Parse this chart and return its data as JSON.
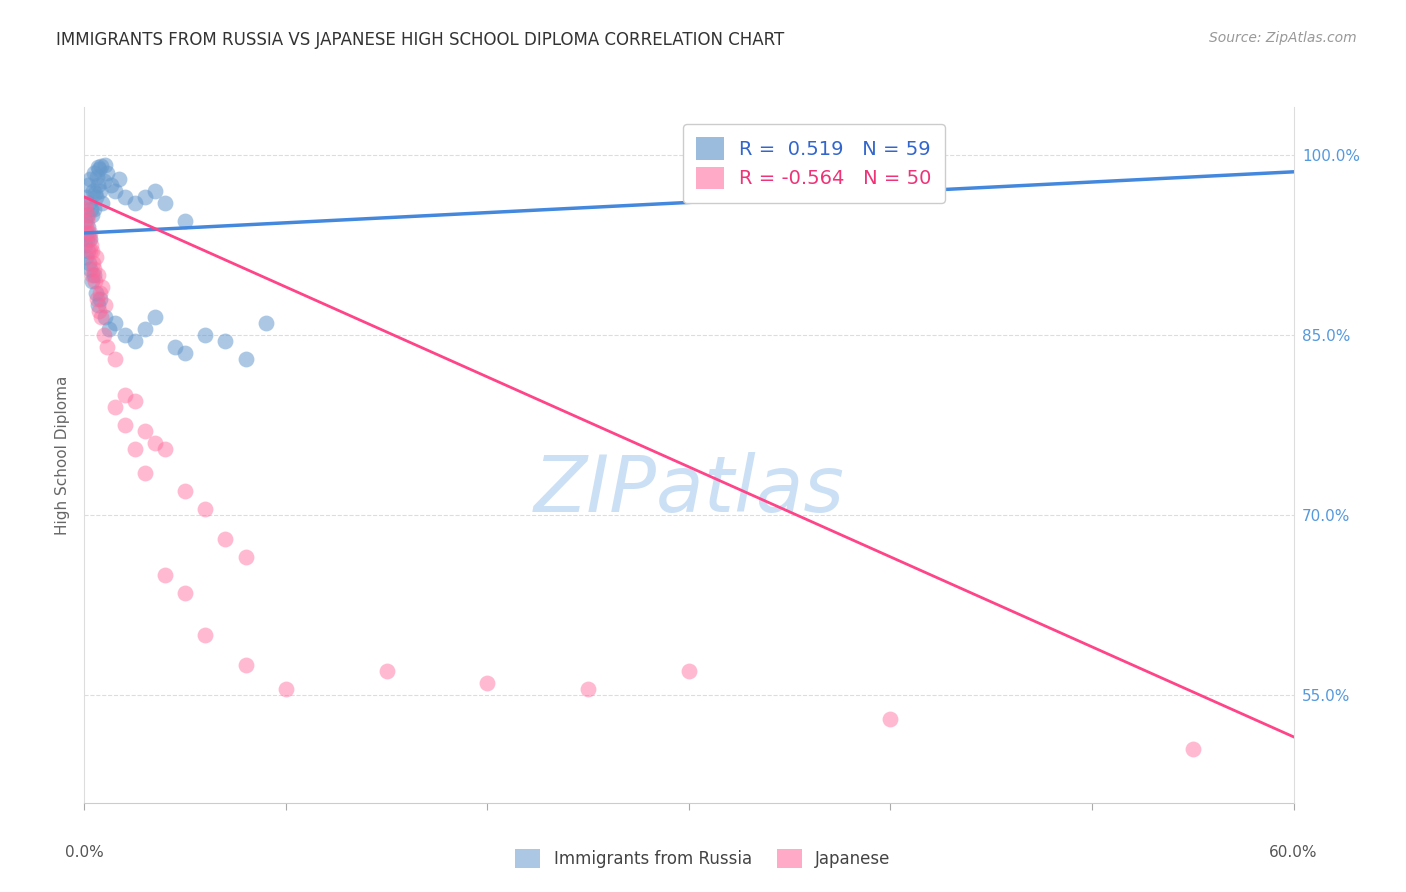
{
  "title": "IMMIGRANTS FROM RUSSIA VS JAPANESE HIGH SCHOOL DIPLOMA CORRELATION CHART",
  "source": "Source: ZipAtlas.com",
  "ylabel": "High School Diploma",
  "y_ticks": [
    55.0,
    70.0,
    85.0,
    100.0
  ],
  "y_tick_labels": [
    "55.0%",
    "70.0%",
    "85.0%",
    "100.0%"
  ],
  "xlim": [
    0.0,
    60.0
  ],
  "ylim": [
    46.0,
    104.0
  ],
  "legend_blue_r": "0.519",
  "legend_blue_n": "59",
  "legend_pink_r": "-0.564",
  "legend_pink_n": "50",
  "legend_label_blue": "Immigrants from Russia",
  "legend_label_pink": "Japanese",
  "blue_color": "#6699CC",
  "pink_color": "#FF6699",
  "blue_scatter": [
    [
      0.2,
      97.5
    ],
    [
      0.3,
      98.0
    ],
    [
      0.5,
      98.5
    ],
    [
      0.7,
      99.0
    ],
    [
      1.0,
      99.2
    ],
    [
      0.1,
      96.5
    ],
    [
      0.15,
      95.0
    ],
    [
      0.25,
      96.0
    ],
    [
      0.35,
      95.5
    ],
    [
      0.45,
      97.0
    ],
    [
      0.55,
      96.8
    ],
    [
      0.65,
      98.2
    ],
    [
      0.75,
      98.8
    ],
    [
      0.85,
      99.1
    ],
    [
      0.95,
      97.8
    ],
    [
      0.05,
      94.5
    ],
    [
      0.1,
      93.5
    ],
    [
      0.2,
      94.0
    ],
    [
      0.3,
      93.0
    ],
    [
      0.4,
      95.0
    ],
    [
      0.5,
      95.5
    ],
    [
      0.6,
      96.5
    ],
    [
      0.7,
      97.5
    ],
    [
      0.8,
      97.0
    ],
    [
      0.9,
      96.0
    ],
    [
      1.1,
      98.5
    ],
    [
      1.3,
      97.5
    ],
    [
      1.5,
      97.0
    ],
    [
      1.7,
      98.0
    ],
    [
      2.0,
      96.5
    ],
    [
      2.5,
      96.0
    ],
    [
      3.0,
      96.5
    ],
    [
      3.5,
      97.0
    ],
    [
      4.0,
      96.0
    ],
    [
      5.0,
      94.5
    ],
    [
      0.05,
      92.5
    ],
    [
      0.1,
      91.5
    ],
    [
      0.15,
      93.0
    ],
    [
      0.2,
      92.0
    ],
    [
      0.25,
      91.0
    ],
    [
      0.3,
      90.5
    ],
    [
      0.4,
      89.5
    ],
    [
      0.5,
      90.0
    ],
    [
      0.6,
      88.5
    ],
    [
      0.7,
      87.5
    ],
    [
      0.8,
      88.0
    ],
    [
      1.0,
      86.5
    ],
    [
      1.2,
      85.5
    ],
    [
      1.5,
      86.0
    ],
    [
      2.0,
      85.0
    ],
    [
      2.5,
      84.5
    ],
    [
      3.0,
      85.5
    ],
    [
      3.5,
      86.5
    ],
    [
      4.5,
      84.0
    ],
    [
      5.0,
      83.5
    ],
    [
      6.0,
      85.0
    ],
    [
      7.0,
      84.5
    ],
    [
      8.0,
      83.0
    ],
    [
      9.0,
      86.0
    ]
  ],
  "pink_scatter": [
    [
      0.1,
      96.0
    ],
    [
      0.2,
      95.0
    ],
    [
      0.3,
      93.5
    ],
    [
      0.4,
      92.0
    ],
    [
      0.5,
      90.5
    ],
    [
      0.6,
      91.5
    ],
    [
      0.7,
      90.0
    ],
    [
      0.8,
      88.5
    ],
    [
      0.9,
      89.0
    ],
    [
      1.0,
      87.5
    ],
    [
      0.15,
      94.5
    ],
    [
      0.25,
      93.0
    ],
    [
      0.35,
      92.5
    ],
    [
      0.45,
      91.0
    ],
    [
      0.55,
      89.5
    ],
    [
      0.65,
      88.0
    ],
    [
      0.75,
      87.0
    ],
    [
      0.85,
      86.5
    ],
    [
      0.95,
      85.0
    ],
    [
      1.1,
      84.0
    ],
    [
      0.05,
      95.5
    ],
    [
      0.1,
      94.0
    ],
    [
      0.2,
      93.5
    ],
    [
      0.3,
      92.0
    ],
    [
      0.4,
      90.0
    ],
    [
      1.5,
      83.0
    ],
    [
      2.0,
      80.0
    ],
    [
      2.5,
      79.5
    ],
    [
      3.0,
      77.0
    ],
    [
      3.5,
      76.0
    ],
    [
      4.0,
      75.5
    ],
    [
      5.0,
      72.0
    ],
    [
      6.0,
      70.5
    ],
    [
      7.0,
      68.0
    ],
    [
      8.0,
      66.5
    ],
    [
      1.5,
      79.0
    ],
    [
      2.0,
      77.5
    ],
    [
      2.5,
      75.5
    ],
    [
      3.0,
      73.5
    ],
    [
      4.0,
      65.0
    ],
    [
      5.0,
      63.5
    ],
    [
      6.0,
      60.0
    ],
    [
      8.0,
      57.5
    ],
    [
      10.0,
      55.5
    ],
    [
      15.0,
      57.0
    ],
    [
      20.0,
      56.0
    ],
    [
      25.0,
      55.5
    ],
    [
      30.0,
      57.0
    ],
    [
      40.0,
      53.0
    ],
    [
      55.0,
      50.5
    ]
  ],
  "blue_line_x0": 0.0,
  "blue_line_x1": 60.0,
  "blue_line_y0": 93.5,
  "blue_line_y1": 98.6,
  "pink_line_x0": 0.0,
  "pink_line_x1": 60.0,
  "pink_line_y0": 96.5,
  "pink_line_y1": 51.5
}
